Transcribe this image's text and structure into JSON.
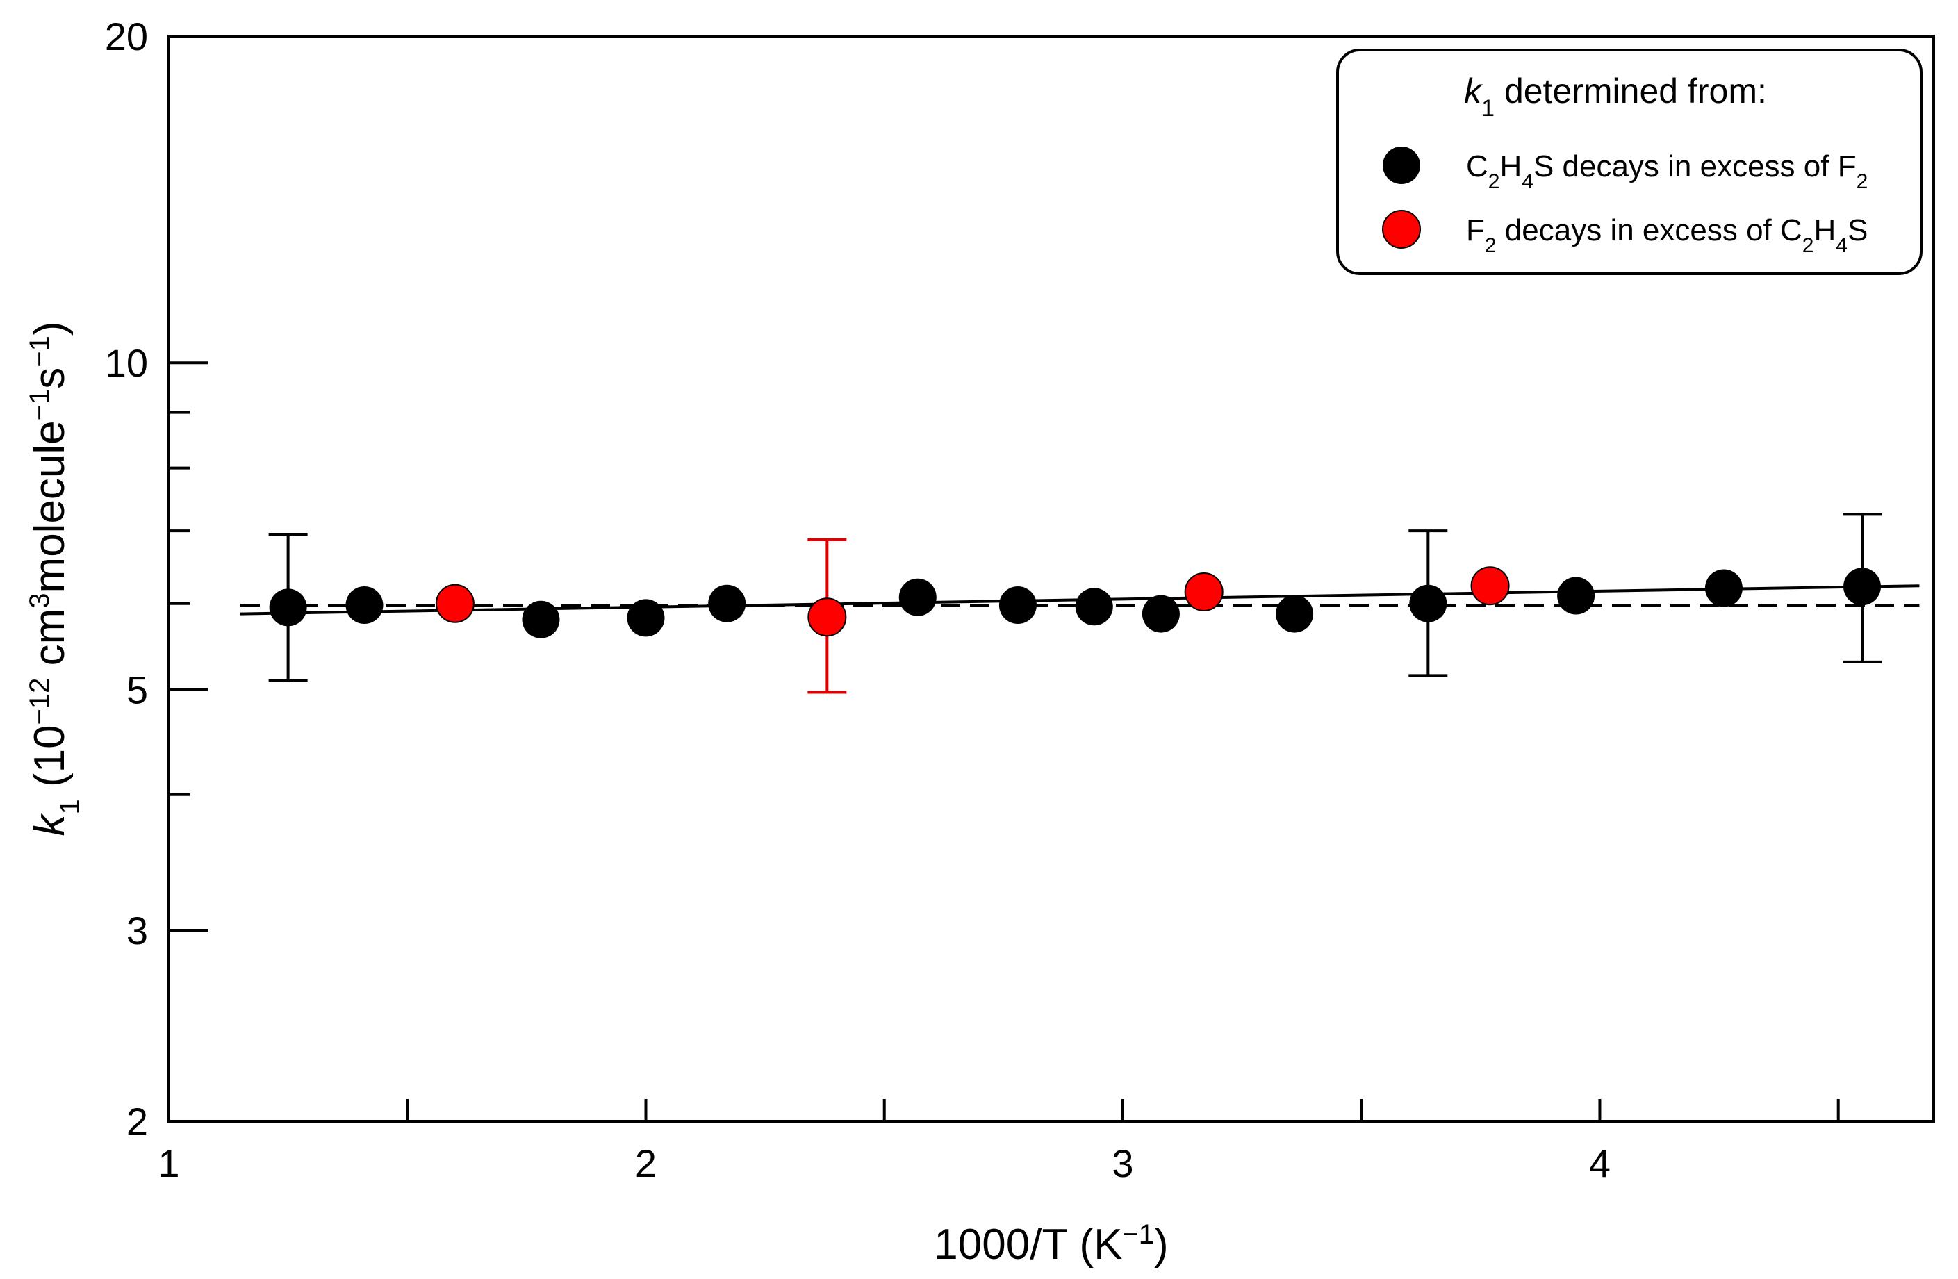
{
  "chart_data": {
    "type": "scatter",
    "title": "",
    "xlabel": {
      "main": "1000/T (K",
      "sup": "−1",
      "end": ")"
    },
    "ylabel": {
      "italic": "k",
      "sub": "1",
      "p1": " (10",
      "sup1": "−12",
      "p2": " cm",
      "sup2": "3",
      "p3": "molecule",
      "sup3": "−1",
      "p4": "s",
      "sup4": "−1",
      "p5": ")"
    },
    "x_axis": {
      "type": "linear",
      "range": [
        1,
        4.7
      ],
      "major_ticks": [
        1,
        2,
        3,
        4
      ],
      "major_labels": [
        "1",
        "2",
        "3",
        "4"
      ],
      "minor_ticks": [
        1.5,
        2.5,
        3.5,
        4.5
      ]
    },
    "y_axis": {
      "type": "log",
      "range": [
        2,
        20
      ],
      "major_ticks": [
        2,
        3,
        5,
        10,
        20
      ],
      "major_labels": [
        "2",
        "3",
        "5",
        "10",
        "20"
      ],
      "minor_ticks": [
        4,
        6,
        7,
        8,
        9
      ]
    },
    "legend": {
      "title": {
        "italic": "k",
        "sub": "1",
        "rest": " determined from:"
      },
      "position": "top-right",
      "entries": [
        {
          "color": "#000000",
          "parts": [
            [
              "C",
              ""
            ],
            [
              "2",
              "sub"
            ],
            [
              "H",
              ""
            ],
            [
              "4",
              "sub"
            ],
            [
              "S decays in excess of F",
              ""
            ],
            [
              "2",
              "sub"
            ]
          ]
        },
        {
          "color": "#ff0000",
          "parts": [
            [
              "F",
              ""
            ],
            [
              "2",
              "sub"
            ],
            [
              " decays in excess of C",
              ""
            ],
            [
              "2",
              "sub"
            ],
            [
              "H",
              ""
            ],
            [
              "4",
              "sub"
            ],
            [
              "S",
              ""
            ]
          ]
        }
      ]
    },
    "series": [
      {
        "name": "C2H4S decays in excess of F2",
        "color": "#000000",
        "points": [
          {
            "x": 1.25,
            "y": 5.95,
            "err": [
              5.1,
              6.95
            ]
          },
          {
            "x": 1.41,
            "y": 5.98
          },
          {
            "x": 1.78,
            "y": 5.8
          },
          {
            "x": 2.0,
            "y": 5.82
          },
          {
            "x": 2.17,
            "y": 6.0
          },
          {
            "x": 2.57,
            "y": 6.08
          },
          {
            "x": 2.78,
            "y": 5.98
          },
          {
            "x": 2.94,
            "y": 5.96
          },
          {
            "x": 3.08,
            "y": 5.87
          },
          {
            "x": 3.36,
            "y": 5.87
          },
          {
            "x": 3.64,
            "y": 6.0,
            "err": [
              5.15,
              7.0
            ]
          },
          {
            "x": 3.95,
            "y": 6.1
          },
          {
            "x": 4.26,
            "y": 6.2
          },
          {
            "x": 4.55,
            "y": 6.22,
            "err": [
              5.3,
              7.25
            ]
          }
        ]
      },
      {
        "name": "F2 decays in excess of C2H4S",
        "color": "#ff0000",
        "points": [
          {
            "x": 1.6,
            "y": 6.0
          },
          {
            "x": 2.38,
            "y": 5.83,
            "err": [
              4.97,
              6.87
            ]
          },
          {
            "x": 3.17,
            "y": 6.15
          },
          {
            "x": 3.77,
            "y": 6.23
          }
        ]
      }
    ],
    "fits": [
      {
        "name": "arrhenius-fit",
        "style": "solid",
        "x": [
          1.15,
          4.67
        ],
        "y": [
          5.87,
          6.23
        ]
      },
      {
        "name": "mean-line",
        "style": "dashed",
        "x": [
          1.15,
          4.67
        ],
        "y": [
          5.98,
          5.98
        ]
      }
    ]
  }
}
